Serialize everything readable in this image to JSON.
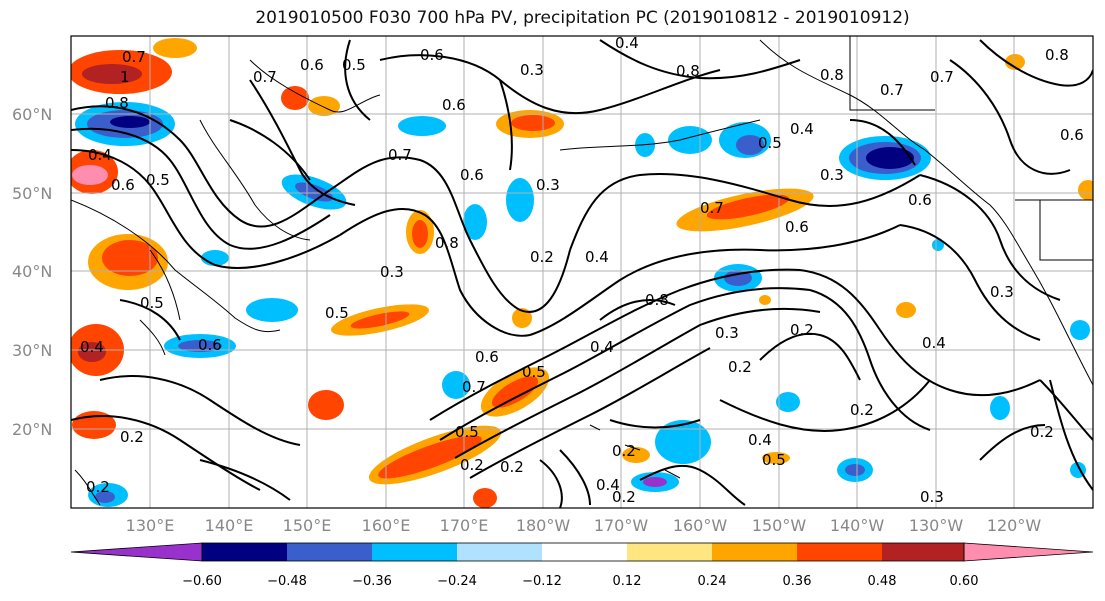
{
  "title": "2019010500 F030 700 hPa PV, precipitation PC (2019010812 - 2019010912)",
  "lat_labels": [
    "60°N",
    "50°N",
    "40°N",
    "30°N",
    "20°N"
  ],
  "lon_labels": [
    "130°E",
    "140°E",
    "150°E",
    "160°E",
    "170°E",
    "180°W",
    "170°W",
    "160°W",
    "150°W",
    "140°W",
    "130°W",
    "120°W"
  ],
  "colorbar": {
    "tick_labels": [
      "−0.60",
      "−0.48",
      "−0.36",
      "−0.24",
      "−0.12",
      "0.12",
      "0.24",
      "0.36",
      "0.48",
      "0.60"
    ],
    "colors": [
      "#9932cc",
      "#000080",
      "#3a5fcd",
      "#00bfff",
      "#b0e2ff",
      "#ffffff",
      "#ffe680",
      "#ffa500",
      "#ff4500",
      "#b22222",
      "#ff8db0"
    ]
  },
  "contour_labels": [
    "0.7",
    "0.6",
    "0.5",
    "0.4",
    "0.3",
    "0.2",
    "0.8",
    "1"
  ]
}
